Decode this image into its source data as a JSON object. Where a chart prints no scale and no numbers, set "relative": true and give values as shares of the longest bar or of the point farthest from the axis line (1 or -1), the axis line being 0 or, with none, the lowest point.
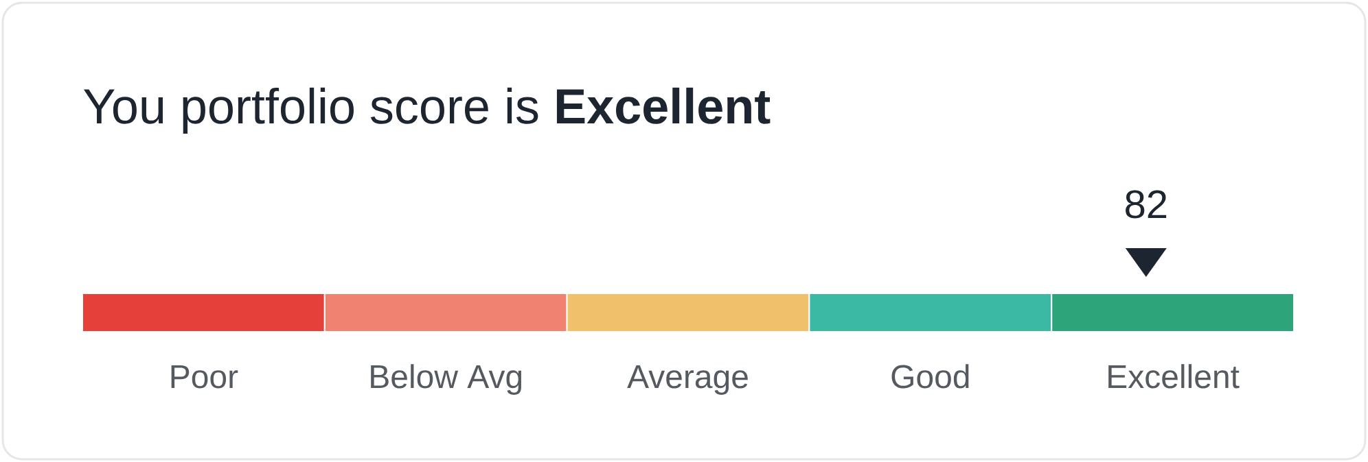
{
  "chart_data": {
    "type": "bar",
    "relative": true,
    "title": "You portfolio score is **Excellent**",
    "categories": [
      "Poor",
      "Below Avg",
      "Average",
      "Good",
      "Excellent"
    ],
    "values": [
      1,
      1,
      1,
      1,
      1
    ],
    "colors": [
      "#e5403a",
      "#ef8270",
      "#f1c06b",
      "#3cb9a5",
      "#2ea47a"
    ],
    "annotations": [
      "82"
    ]
  }
}
